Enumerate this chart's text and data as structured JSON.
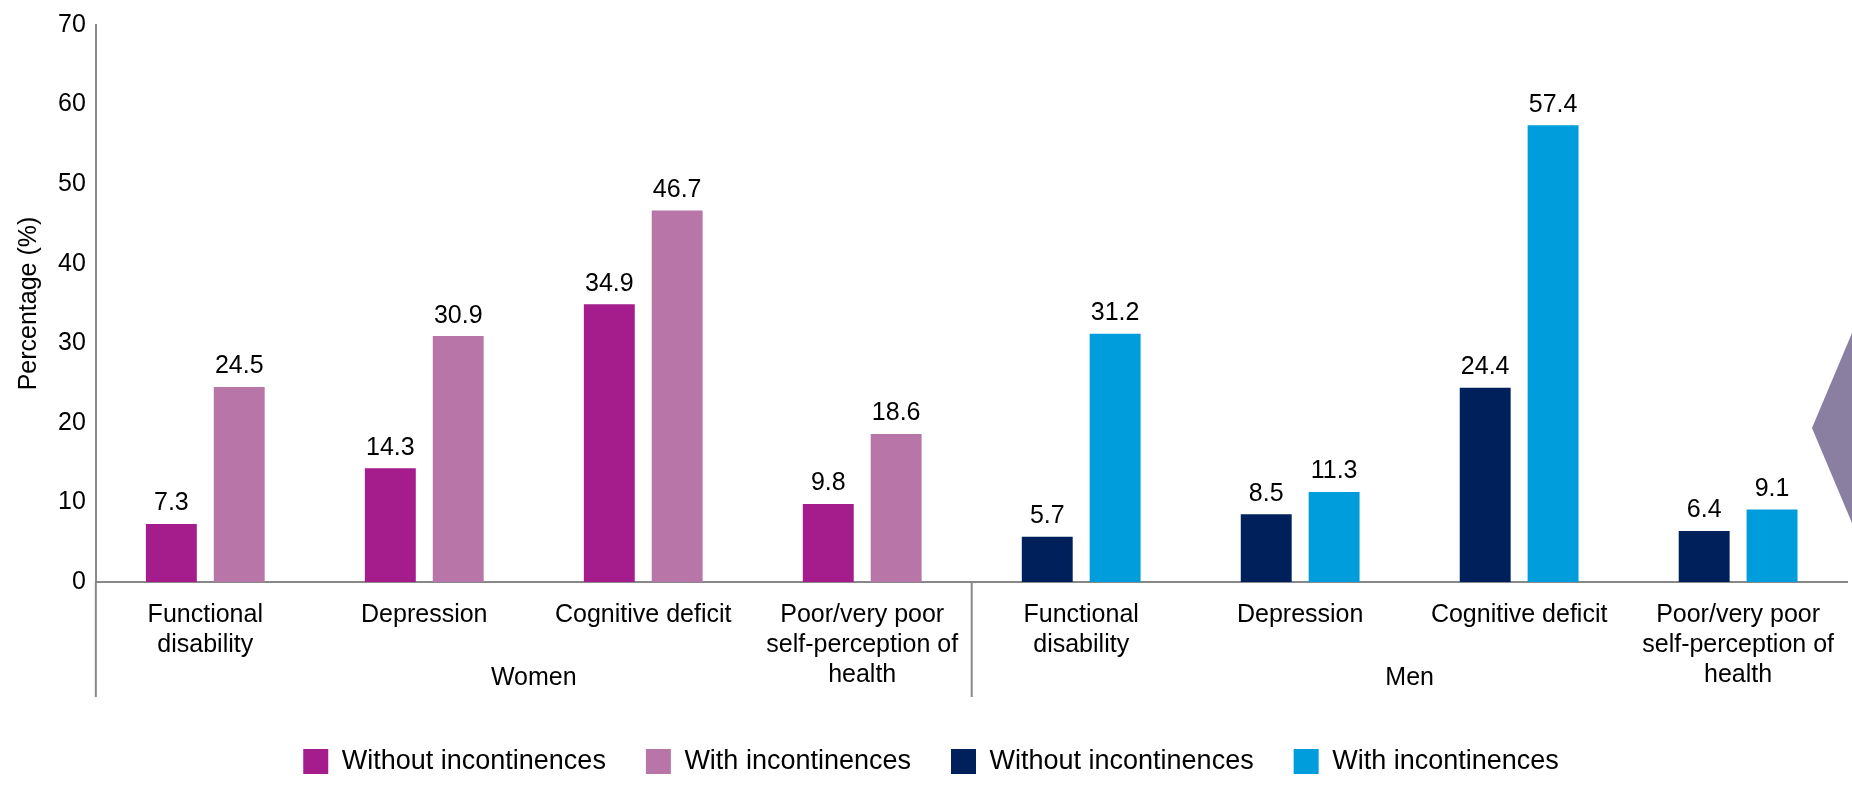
{
  "chart_data": {
    "type": "bar",
    "ylabel": "Percentage (%)",
    "categories": [
      "Functional disability",
      "Depression",
      "Cognitive deficit",
      "Poor/very poor self-perception of health",
      "Functional disability",
      "Depression",
      "Cognitive deficit",
      "Poor/very poor self-perception of health"
    ],
    "series": [
      {
        "name": "Without incontinences",
        "color": "#a51c8c",
        "values": [
          7.3,
          14.3,
          34.9,
          9.8,
          null,
          null,
          null,
          null
        ]
      },
      {
        "name": "With incontinences",
        "color": "#b875a8",
        "values": [
          24.5,
          30.9,
          46.7,
          18.6,
          null,
          null,
          null,
          null
        ]
      },
      {
        "name": "Without incontinences",
        "color": "#00205b",
        "values": [
          null,
          null,
          null,
          null,
          5.7,
          8.5,
          24.4,
          6.4
        ]
      },
      {
        "name": "With incontinences",
        "color": "#009ddc",
        "values": [
          null,
          null,
          null,
          null,
          31.2,
          11.3,
          57.4,
          9.1
        ]
      }
    ],
    "ylim": [
      0,
      70
    ],
    "yticks": [
      0,
      10,
      20,
      30,
      40,
      50,
      60,
      70
    ],
    "data_labels": true,
    "legend": "bottom",
    "grid": false,
    "annotations": [
      "Women",
      "Men"
    ]
  }
}
